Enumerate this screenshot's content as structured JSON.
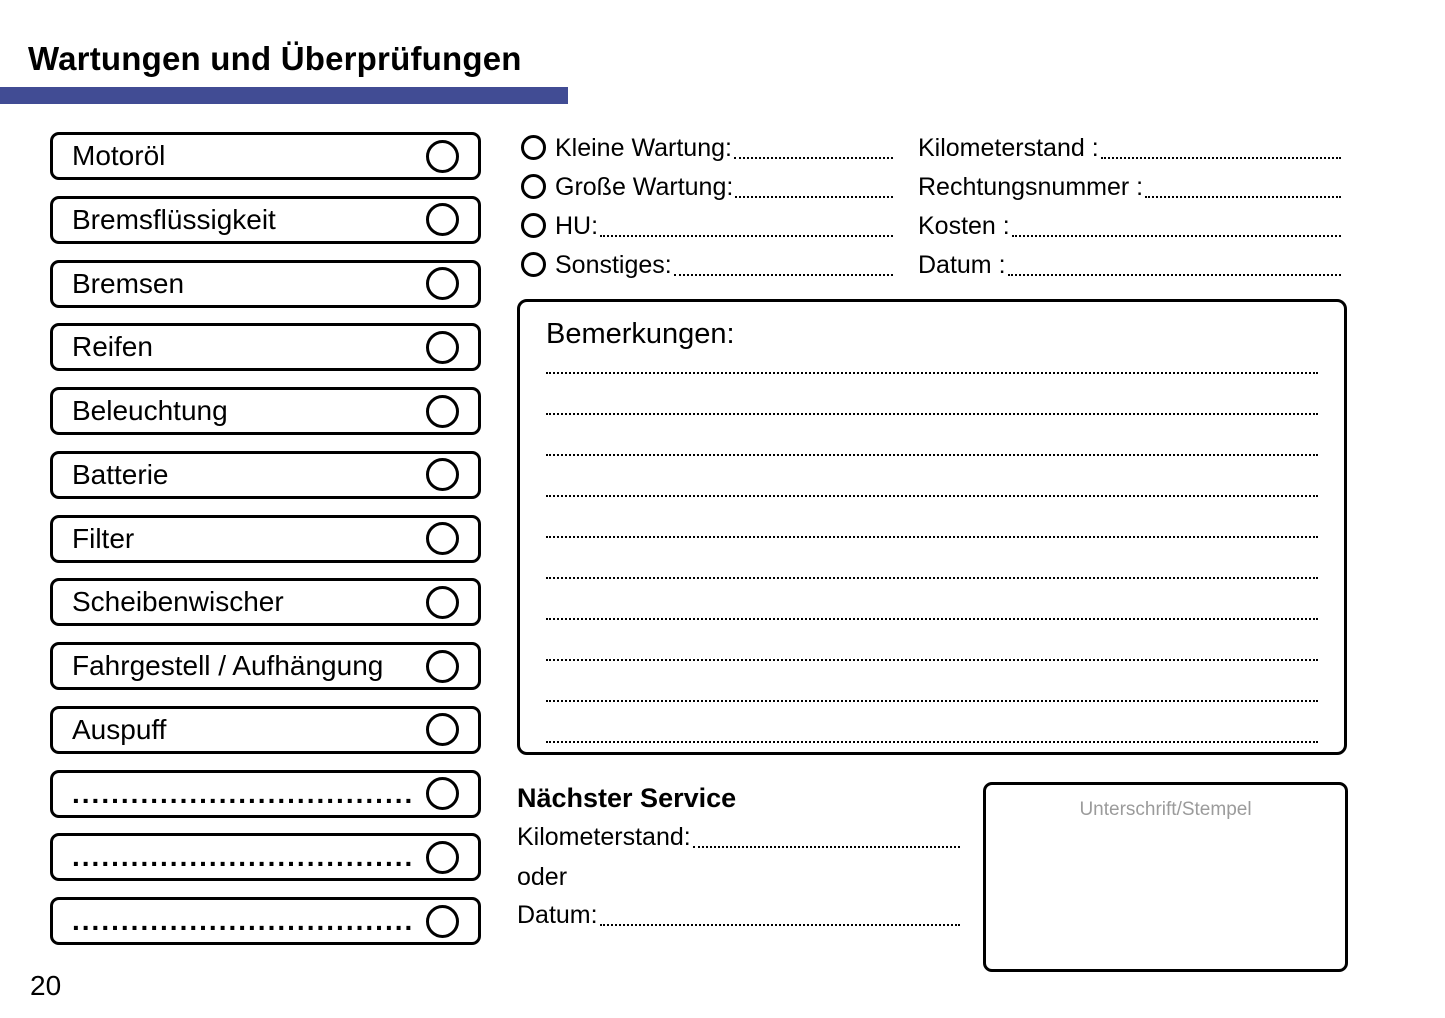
{
  "header": {
    "title": "Wartungen und Überprüfungen",
    "accent_color": "#414C94"
  },
  "checklist": {
    "items": [
      {
        "label": "Motoröl"
      },
      {
        "label": "Bremsflüssigkeit"
      },
      {
        "label": "Bremsen"
      },
      {
        "label": "Reifen"
      },
      {
        "label": "Beleuchtung"
      },
      {
        "label": "Batterie"
      },
      {
        "label": "Filter"
      },
      {
        "label": "Scheibenwischer"
      },
      {
        "label": "Fahrgestell / Aufhängung"
      },
      {
        "label": "Auspuff"
      },
      {
        "label": "..................................................",
        "empty": true
      },
      {
        "label": "..................................................",
        "empty": true
      },
      {
        "label": "..................................................",
        "empty": true
      }
    ]
  },
  "service_type": {
    "options": [
      {
        "label": "Kleine Wartung:"
      },
      {
        "label": "Große Wartung:"
      },
      {
        "label": "HU:"
      },
      {
        "label": "Sonstiges:"
      }
    ]
  },
  "invoice_details": {
    "fields": [
      {
        "label": "Kilometerstand :"
      },
      {
        "label": "Rechtungsnummer :"
      },
      {
        "label": "Kosten :"
      },
      {
        "label": "Datum :"
      }
    ]
  },
  "remarks": {
    "title": "Bemerkungen:",
    "line_count": 10
  },
  "next_service": {
    "title": "Nächster Service",
    "kilometerstand_label": "Kilometerstand:",
    "or_label": "oder",
    "datum_label": "Datum:"
  },
  "signature_box": {
    "label": "Unterschrift/Stempel",
    "label_color": "#9b9b9b"
  },
  "footer": {
    "page_number": "20"
  }
}
